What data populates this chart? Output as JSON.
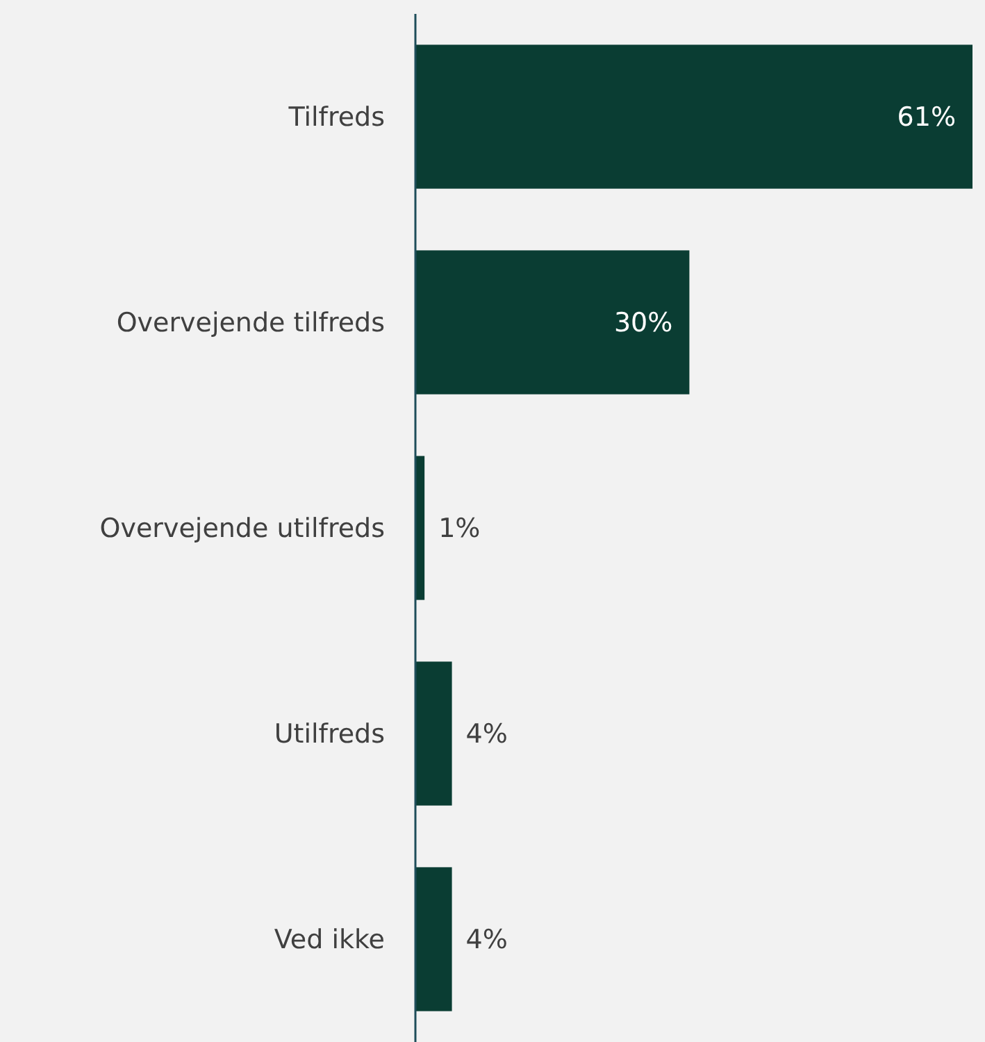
{
  "chart_data": {
    "type": "bar",
    "orientation": "horizontal",
    "categories": [
      "Tilfreds",
      "Overvejende tilfreds",
      "Overvejende utilfreds",
      "Utilfreds",
      "Ved ikke"
    ],
    "values": [
      61,
      30,
      1,
      4,
      4
    ],
    "value_labels": [
      "61%",
      "30%",
      "1%",
      "4%",
      "4%"
    ],
    "color": "#0a3d33"
  }
}
